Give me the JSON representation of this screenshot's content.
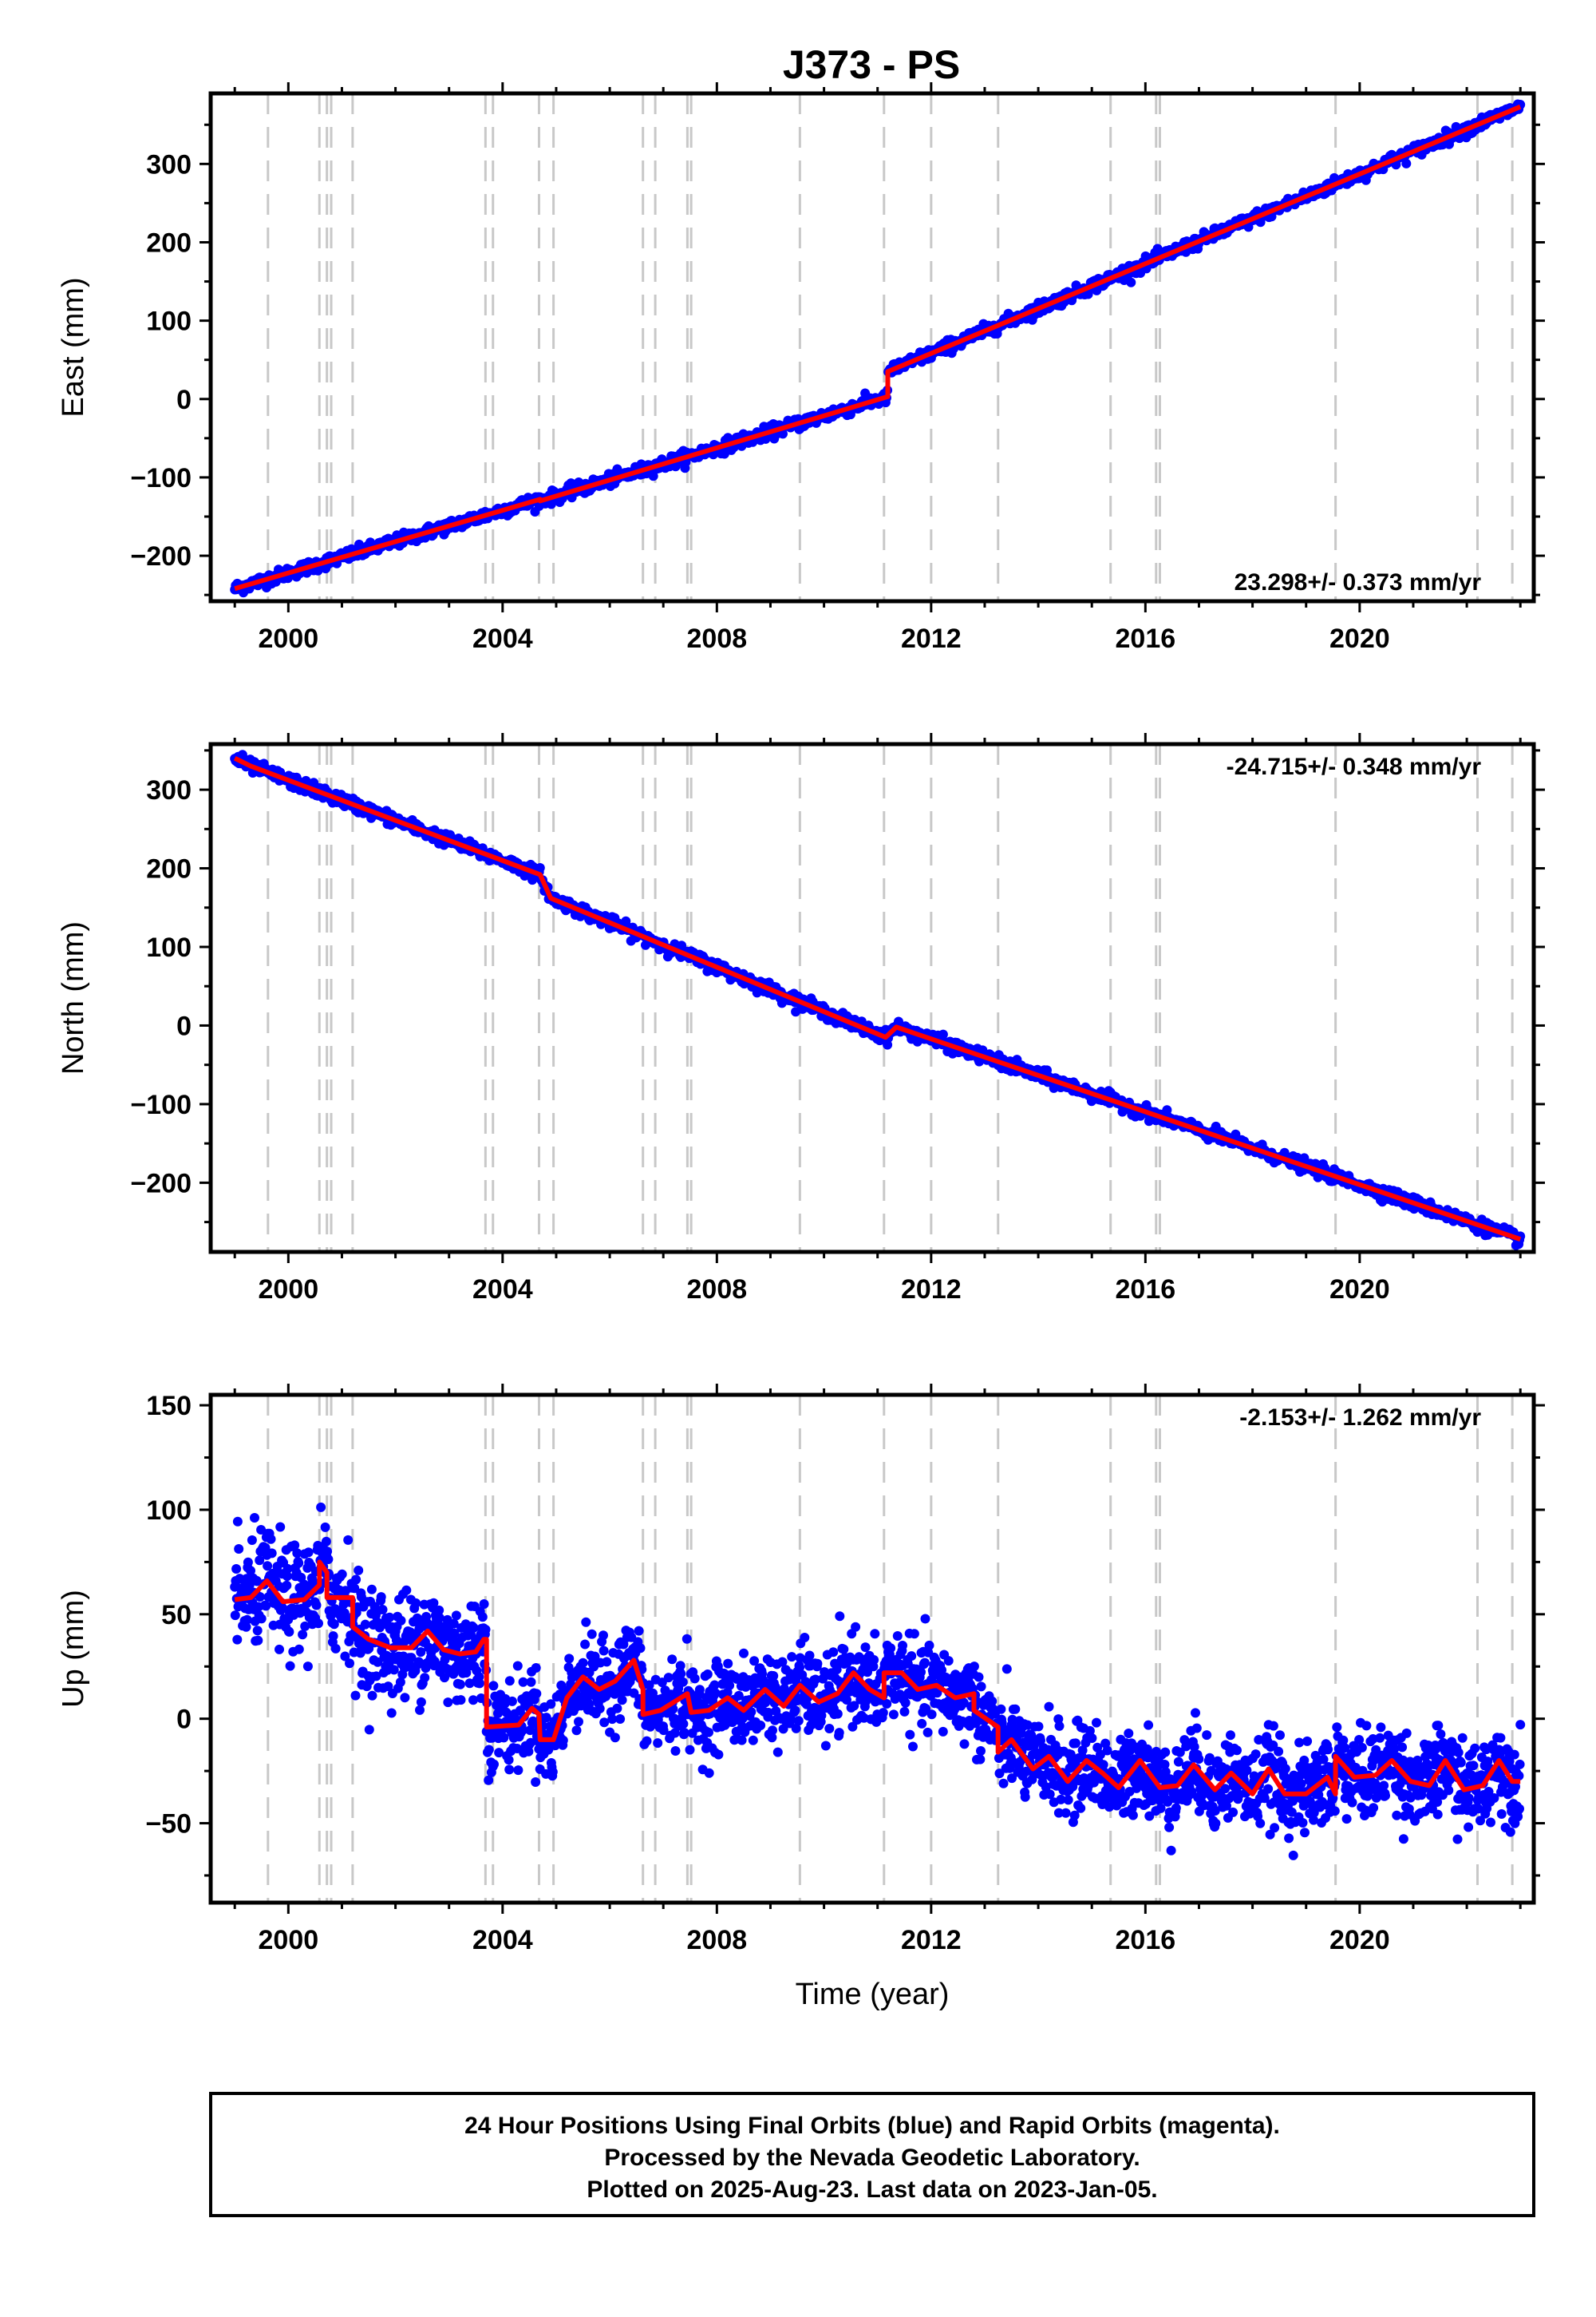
{
  "title": "J373 - PS",
  "chart_data": [
    {
      "type": "scatter",
      "panel": "east",
      "ylabel": "East (mm)",
      "xlabel": "",
      "xlim": [
        1998.55,
        2023.25
      ],
      "ylim": [
        -258,
        390
      ],
      "xticks": [
        2000,
        2004,
        2008,
        2012,
        2016,
        2020
      ],
      "yticks": [
        -200,
        -100,
        0,
        100,
        200,
        300
      ],
      "rate_label": "23.298+/- 0.373 mm/yr",
      "rate_position": "bottom-right",
      "breaks": [
        1999.62,
        2000.58,
        2000.72,
        2000.8,
        2001.2,
        2003.68,
        2003.82,
        2004.68,
        2004.95,
        2006.62,
        2006.85,
        2007.45,
        2007.52,
        2009.55,
        2011.12,
        2012.0,
        2013.25,
        2015.35,
        2016.2,
        2016.27,
        2019.55,
        2022.2,
        2022.85
      ],
      "noise": 4,
      "series": [
        {
          "type": "line",
          "color": "#ff0000",
          "x": [
            1999.0,
            2004.7,
            2004.7,
            2011.19,
            2011.19,
            2023.0
          ],
          "y": [
            -242,
            -128,
            -130,
            3,
            35,
            373
          ]
        }
      ]
    },
    {
      "type": "scatter",
      "panel": "north",
      "ylabel": "North (mm)",
      "xlabel": "",
      "xlim": [
        1998.55,
        2023.25
      ],
      "ylim": [
        -288,
        358
      ],
      "xticks": [
        2000,
        2004,
        2008,
        2012,
        2016,
        2020
      ],
      "yticks": [
        -200,
        -100,
        0,
        100,
        200,
        300
      ],
      "rate_label": "-24.715+/- 0.348 mm/yr",
      "rate_position": "top-right",
      "breaks": [
        1999.62,
        2000.58,
        2000.72,
        2000.8,
        2001.2,
        2003.68,
        2003.82,
        2004.68,
        2004.95,
        2006.62,
        2006.85,
        2007.45,
        2007.52,
        2009.55,
        2011.12,
        2012.0,
        2013.25,
        2015.35,
        2016.2,
        2016.27,
        2019.55,
        2022.2,
        2022.85
      ],
      "noise": 4,
      "series": [
        {
          "type": "line",
          "color": "#ff0000",
          "x": [
            1999.0,
            1999.3,
            2004.7,
            2004.9,
            2011.15,
            2011.35,
            2023.0
          ],
          "y": [
            340,
            330,
            192,
            162,
            -15,
            -2,
            -272
          ]
        }
      ]
    },
    {
      "type": "scatter",
      "panel": "up",
      "ylabel": "Up (mm)",
      "xlabel": "Time (year)",
      "xlim": [
        1998.55,
        2023.25
      ],
      "ylim": [
        -88,
        155
      ],
      "xticks": [
        2000,
        2004,
        2008,
        2012,
        2016,
        2020
      ],
      "yticks": [
        -50,
        0,
        50,
        100,
        150
      ],
      "rate_label": "-2.153+/- 1.262 mm/yr",
      "rate_position": "top-right",
      "breaks": [
        1999.62,
        2000.58,
        2000.72,
        2000.8,
        2001.2,
        2003.68,
        2003.82,
        2004.68,
        2004.95,
        2006.62,
        2006.85,
        2007.45,
        2007.52,
        2009.55,
        2011.12,
        2012.0,
        2013.25,
        2015.35,
        2016.2,
        2016.27,
        2019.55,
        2022.2,
        2022.85
      ],
      "noise": 10,
      "series": [
        {
          "type": "line",
          "color": "#ff0000",
          "x": [
            1999.0,
            1999.3,
            1999.6,
            1999.9,
            2000.3,
            2000.58,
            2000.58,
            2000.72,
            2000.72,
            2001.2,
            2001.2,
            2001.5,
            2001.9,
            2002.3,
            2002.6,
            2002.9,
            2003.2,
            2003.5,
            2003.65,
            2003.7,
            2003.7,
            2004.3,
            2004.55,
            2004.68,
            2004.7,
            2004.95,
            2005.2,
            2005.5,
            2005.8,
            2006.1,
            2006.45,
            2006.62,
            2006.62,
            2006.95,
            2007.45,
            2007.52,
            2007.85,
            2008.2,
            2008.5,
            2008.9,
            2009.25,
            2009.55,
            2009.9,
            2010.25,
            2010.55,
            2010.85,
            2011.12,
            2011.12,
            2011.45,
            2011.75,
            2012.1,
            2012.45,
            2012.8,
            2012.8,
            2013.25,
            2013.25,
            2013.5,
            2013.9,
            2014.2,
            2014.55,
            2014.9,
            2015.2,
            2015.5,
            2015.9,
            2016.27,
            2016.6,
            2016.9,
            2017.3,
            2017.6,
            2018.0,
            2018.3,
            2018.6,
            2019.0,
            2019.4,
            2019.55,
            2019.55,
            2019.9,
            2020.3,
            2020.6,
            2020.95,
            2021.3,
            2021.6,
            2021.95,
            2022.3,
            2022.6,
            2022.85,
            2023.0
          ],
          "y": [
            57,
            58,
            66,
            56,
            57,
            64,
            75,
            70,
            58,
            58,
            44,
            38,
            34,
            34,
            42,
            33,
            31,
            32,
            38,
            38,
            -4,
            -3,
            5,
            2,
            -10,
            -10,
            10,
            20,
            14,
            18,
            28,
            14,
            2,
            4,
            12,
            3,
            4,
            10,
            4,
            14,
            6,
            16,
            8,
            12,
            22,
            14,
            10,
            22,
            22,
            14,
            16,
            10,
            12,
            4,
            -4,
            -16,
            -10,
            -24,
            -18,
            -30,
            -20,
            -26,
            -33,
            -20,
            -33,
            -32,
            -22,
            -34,
            -26,
            -36,
            -24,
            -36,
            -36,
            -28,
            -36,
            -18,
            -28,
            -27,
            -20,
            -30,
            -32,
            -20,
            -34,
            -32,
            -20,
            -30,
            -30
          ]
        }
      ]
    }
  ],
  "footer": {
    "line1": "24 Hour Positions Using Final Orbits (blue) and Rapid Orbits (magenta).",
    "line2": "Processed by the Nevada Geodetic Laboratory.",
    "line3": "Plotted on 2025-Aug-23. Last data on 2023-Jan-05."
  },
  "colors": {
    "points": "#0000ff",
    "model": "#ff0000",
    "breaks": "#c8c8c8",
    "frame": "#000000"
  }
}
